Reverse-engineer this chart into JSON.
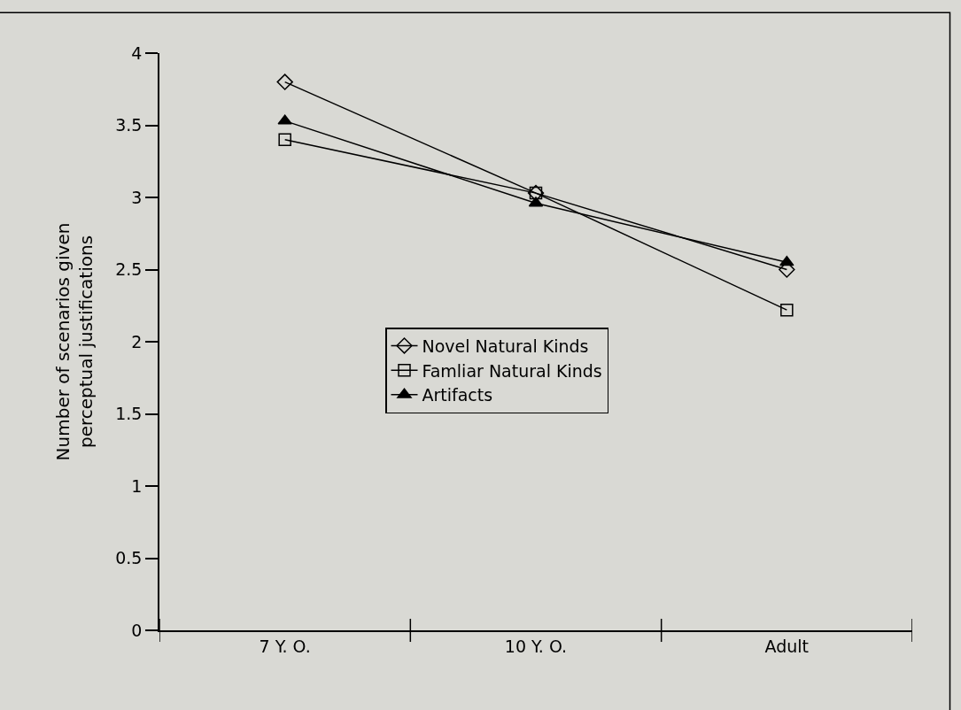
{
  "chart_data": {
    "type": "line",
    "ylabel": "Number of scenarios given perceptual justifications",
    "categories": [
      "7 Y. O.",
      "10 Y. O.",
      "Adult"
    ],
    "series": [
      {
        "name": "Novel Natural Kinds",
        "color": "#000000",
        "marker": "diamond",
        "values": [
          3.8,
          3.03,
          2.5
        ]
      },
      {
        "name": "Famliar Natural Kinds",
        "color": "#000000",
        "marker": "square",
        "values": [
          3.4,
          3.03,
          2.22
        ]
      },
      {
        "name": "Artifacts",
        "color": "#000000",
        "marker": "triangle",
        "values": [
          3.53,
          2.96,
          2.55
        ]
      }
    ],
    "ylim": [
      0,
      4
    ],
    "yticks": [
      0,
      0.5,
      1,
      1.5,
      2,
      2.5,
      3,
      3.5,
      4
    ],
    "grid": false,
    "legend": "center",
    "line_style": "solid"
  }
}
